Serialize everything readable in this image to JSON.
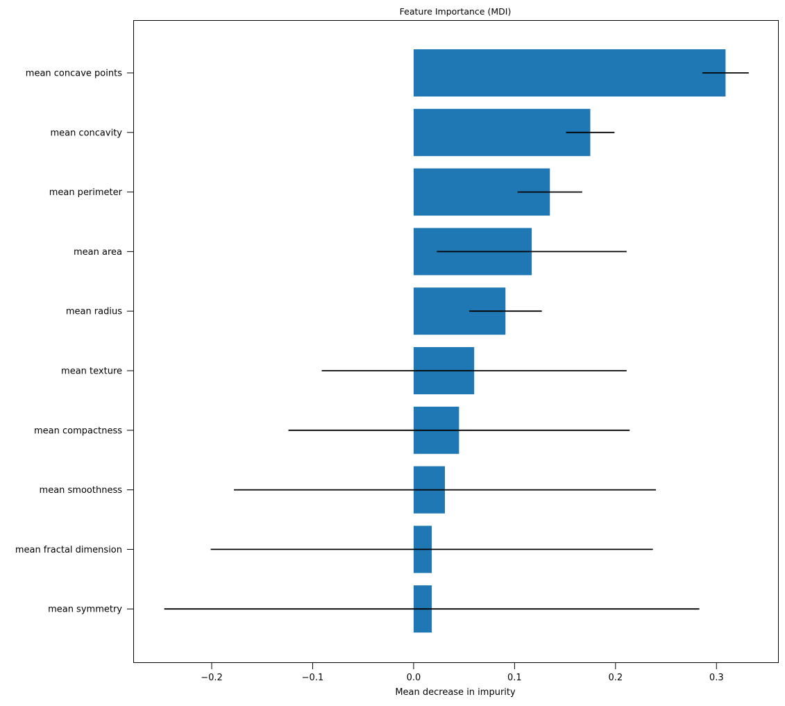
{
  "chart_data": {
    "type": "bar",
    "orientation": "horizontal",
    "title": "Feature Importance (MDI)",
    "xlabel": "Mean decrease in impurity",
    "ylabel": "",
    "xlim": [
      -0.277,
      0.361
    ],
    "xticks": [
      -0.2,
      -0.1,
      0.0,
      0.1,
      0.2,
      0.3
    ],
    "xtick_labels": [
      "−0.2",
      "−0.1",
      "0.0",
      "0.1",
      "0.2",
      "0.3"
    ],
    "grid": false,
    "categories": [
      "mean concave points",
      "mean concavity",
      "mean perimeter",
      "mean area",
      "mean radius",
      "mean texture",
      "mean compactness",
      "mean smoothness",
      "mean fractal dimension",
      "mean symmetry"
    ],
    "values": [
      0.309,
      0.175,
      0.135,
      0.117,
      0.091,
      0.06,
      0.045,
      0.031,
      0.018,
      0.018
    ],
    "errors": [
      0.023,
      0.024,
      0.032,
      0.094,
      0.036,
      0.151,
      0.169,
      0.209,
      0.219,
      0.265
    ],
    "bar_color": "#1f77b4",
    "error_color": "#000000"
  }
}
